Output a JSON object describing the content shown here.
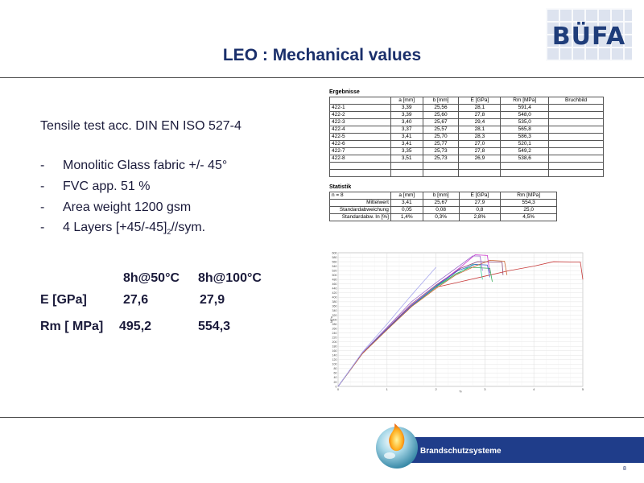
{
  "logo": {
    "text": "BÜFA"
  },
  "title": "LEO : Mechanical  values",
  "spec": "Tensile test acc. DIN EN ISO 527-4",
  "bullets": [
    {
      "dash": "-",
      "text": "Monolitic Glass fabric +/- 45°"
    },
    {
      "dash": "-",
      "text": "FVC app. 51 %"
    },
    {
      "dash": "-",
      "text": "Area weight 1200 gsm"
    },
    {
      "dash": "-",
      "text_before": "4 Layers   [+45/-45]",
      "text_sub": "2",
      "text_after": "//sym."
    }
  ],
  "comparison": {
    "conditions": [
      "8h@50°C",
      "8h@100°C"
    ],
    "rows": [
      {
        "label": "E [GPa]",
        "values": [
          "27,6",
          "27,9"
        ]
      },
      {
        "label": "Rm [ MPa]",
        "values": [
          "495,2",
          "554,3"
        ]
      }
    ]
  },
  "results": {
    "title": "Ergebnisse",
    "headers": [
      "a [mm]",
      "b [mm]",
      "E [GPa]",
      "Rm [MPa]",
      "Bruchbild"
    ],
    "rows": [
      [
        "422-1",
        "3,39",
        "25,56",
        "28,1",
        "591,4",
        ""
      ],
      [
        "422-2",
        "3,39",
        "25,60",
        "27,8",
        "548,0",
        ""
      ],
      [
        "422-3",
        "3,40",
        "25,67",
        "29,4",
        "535,0",
        ""
      ],
      [
        "422-4",
        "3,37",
        "25,57",
        "28,1",
        "565,8",
        ""
      ],
      [
        "422-5",
        "3,41",
        "25,70",
        "28,3",
        "586,3",
        ""
      ],
      [
        "422-6",
        "3,41",
        "25,77",
        "27,0",
        "520,1",
        ""
      ],
      [
        "422-7",
        "3,35",
        "25,73",
        "27,8",
        "549,2",
        ""
      ],
      [
        "422-8",
        "3,51",
        "25,73",
        "26,9",
        "538,6",
        ""
      ]
    ]
  },
  "statistics": {
    "title": "Statistik",
    "n_label": "n = 8",
    "headers": [
      "a [mm]",
      "b [mm]",
      "E [GPa]",
      "Rm [MPa]"
    ],
    "rows": [
      [
        "Mittelwert",
        "3,41",
        "25,67",
        "27,9",
        "554,3"
      ],
      [
        "Standardabweichung",
        "0,05",
        "0,08",
        "0,8",
        "25,0"
      ],
      [
        "Standardabw. In [%]",
        "1,4%",
        "0,3%",
        "2,8%",
        "4,5%"
      ]
    ]
  },
  "footer": {
    "text": "Brandschutzsysteme",
    "page": "8"
  },
  "colors": {
    "title": "#1a2f6b",
    "footer_band": "#1f3d8a",
    "text": "#1a1a3a"
  },
  "chart_data": {
    "type": "line",
    "title": "",
    "xlabel": "%",
    "ylabel": "MPa",
    "xlim": [
      0,
      5
    ],
    "ylim": [
      0,
      600
    ],
    "x_ticks": [
      "0",
      "1",
      "2",
      "3",
      "4",
      "5"
    ],
    "y_ticks": [
      "0",
      "20",
      "40",
      "60",
      "80",
      "100",
      "120",
      "140",
      "160",
      "180",
      "200",
      "220",
      "240",
      "260",
      "280",
      "300",
      "320",
      "340",
      "360",
      "380",
      "400",
      "420",
      "440",
      "460",
      "480",
      "500",
      "520",
      "540",
      "560",
      "580",
      "600"
    ],
    "grid": true,
    "series": [
      {
        "color": "#8c4a7a",
        "points": [
          [
            0,
            0
          ],
          [
            0.5,
            150
          ],
          [
            1,
            260
          ],
          [
            1.5,
            370
          ],
          [
            2,
            455
          ],
          [
            2.5,
            530
          ],
          [
            2.85,
            560
          ],
          [
            3.35,
            558
          ],
          [
            3.37,
            500
          ]
        ]
      },
      {
        "color": "#c83a3a",
        "points": [
          [
            0,
            0
          ],
          [
            0.5,
            148
          ],
          [
            1,
            255
          ],
          [
            1.5,
            360
          ],
          [
            2,
            445
          ],
          [
            2.5,
            470
          ],
          [
            3,
            495
          ],
          [
            3.5,
            520
          ],
          [
            4,
            540
          ],
          [
            4.4,
            560
          ],
          [
            4.95,
            558
          ],
          [
            5.0,
            480
          ]
        ]
      },
      {
        "color": "#cc33cc",
        "points": [
          [
            0,
            0
          ],
          [
            0.5,
            150
          ],
          [
            1,
            258
          ],
          [
            1.5,
            365
          ],
          [
            2,
            450
          ],
          [
            2.5,
            535
          ],
          [
            2.8,
            591
          ],
          [
            3.05,
            588
          ],
          [
            3.1,
            510
          ]
        ]
      },
      {
        "color": "#33aa55",
        "points": [
          [
            0,
            0
          ],
          [
            0.5,
            149
          ],
          [
            1,
            256
          ],
          [
            1.5,
            362
          ],
          [
            2,
            448
          ],
          [
            2.4,
            505
          ],
          [
            2.7,
            535
          ],
          [
            3.1,
            530
          ],
          [
            3.15,
            470
          ]
        ]
      },
      {
        "color": "#33cc99",
        "points": [
          [
            0,
            0
          ],
          [
            0.5,
            149
          ],
          [
            1,
            256
          ],
          [
            1.5,
            360
          ],
          [
            2,
            446
          ],
          [
            2.4,
            500
          ],
          [
            2.75,
            548
          ],
          [
            2.9,
            545
          ],
          [
            2.95,
            480
          ]
        ]
      },
      {
        "color": "#3366cc",
        "points": [
          [
            0,
            0
          ],
          [
            0.5,
            150
          ],
          [
            1,
            257
          ],
          [
            1.5,
            362
          ],
          [
            2,
            450
          ],
          [
            2.45,
            520
          ],
          [
            2.8,
            548
          ],
          [
            3.05,
            545
          ],
          [
            3.1,
            490
          ]
        ]
      },
      {
        "color": "#cc6633",
        "points": [
          [
            0,
            0
          ],
          [
            0.5,
            148
          ],
          [
            1,
            254
          ],
          [
            1.5,
            358
          ],
          [
            2,
            440
          ],
          [
            2.4,
            500
          ],
          [
            2.8,
            540
          ],
          [
            3.1,
            566
          ],
          [
            3.4,
            562
          ],
          [
            3.45,
            500
          ]
        ]
      },
      {
        "color": "#9966cc",
        "points": [
          [
            0,
            0
          ],
          [
            0.5,
            152
          ],
          [
            1,
            265
          ],
          [
            1.5,
            380
          ],
          [
            2,
            465
          ],
          [
            2.5,
            545
          ],
          [
            2.75,
            586
          ],
          [
            2.9,
            585
          ],
          [
            2.95,
            520
          ]
        ]
      },
      {
        "color": "#aaaaee",
        "points": [
          [
            0,
            0
          ],
          [
            0.5,
            155
          ],
          [
            1,
            280
          ],
          [
            1.5,
            410
          ],
          [
            2,
            535
          ]
        ]
      }
    ]
  }
}
